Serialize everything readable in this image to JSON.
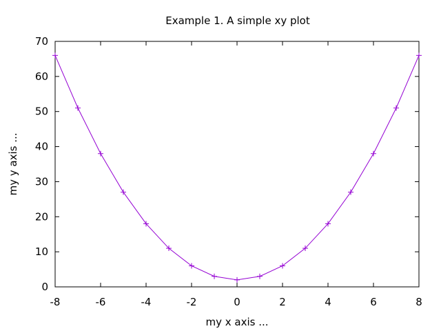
{
  "chart_data": {
    "type": "line",
    "title": "Example 1. A simple xy plot",
    "xlabel": "my x axis ...",
    "ylabel": "my y axis ...",
    "xlim": [
      -8,
      8
    ],
    "ylim": [
      0,
      70
    ],
    "x_ticks": [
      -8,
      -6,
      -4,
      -2,
      0,
      2,
      4,
      6,
      8
    ],
    "y_ticks": [
      0,
      10,
      20,
      30,
      40,
      50,
      60,
      70
    ],
    "grid": false,
    "legend": "none",
    "marker": "plus",
    "series": [
      {
        "color": "#9400d3",
        "x": [
          -8,
          -7,
          -6,
          -5,
          -4,
          -3,
          -2,
          -1,
          0,
          1,
          2,
          3,
          4,
          5,
          6,
          7,
          8
        ],
        "y": [
          66,
          51,
          38,
          27,
          18,
          11,
          6,
          3,
          2,
          3,
          6,
          11,
          18,
          27,
          38,
          51,
          66
        ]
      }
    ]
  }
}
